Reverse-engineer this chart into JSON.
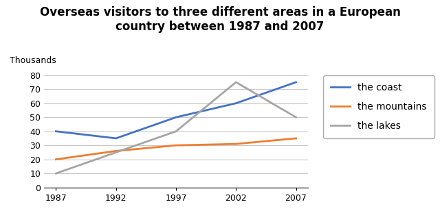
{
  "title_line1": "Overseas visitors to three different areas in a European",
  "title_line2": "country between 1987 and 2007",
  "ylabel": "Thousands",
  "years": [
    1987,
    1992,
    1997,
    2002,
    2007
  ],
  "series": [
    {
      "label": "the coast",
      "values": [
        40,
        35,
        50,
        60,
        75
      ],
      "color": "#4472C4",
      "linewidth": 2.0
    },
    {
      "label": "the mountains",
      "values": [
        20,
        26,
        30,
        31,
        35
      ],
      "color": "#ED7D31",
      "linewidth": 2.0
    },
    {
      "label": "the lakes",
      "values": [
        10,
        25,
        40,
        75,
        50
      ],
      "color": "#A5A5A5",
      "linewidth": 2.0
    }
  ],
  "ylim": [
    0,
    85
  ],
  "yticks": [
    0,
    10,
    20,
    30,
    40,
    50,
    60,
    70,
    80
  ],
  "background_color": "#FFFFFF",
  "grid_color": "#C8C8C8",
  "title_fontsize": 12,
  "legend_fontsize": 10,
  "tick_fontsize": 9,
  "ylabel_fontsize": 9
}
